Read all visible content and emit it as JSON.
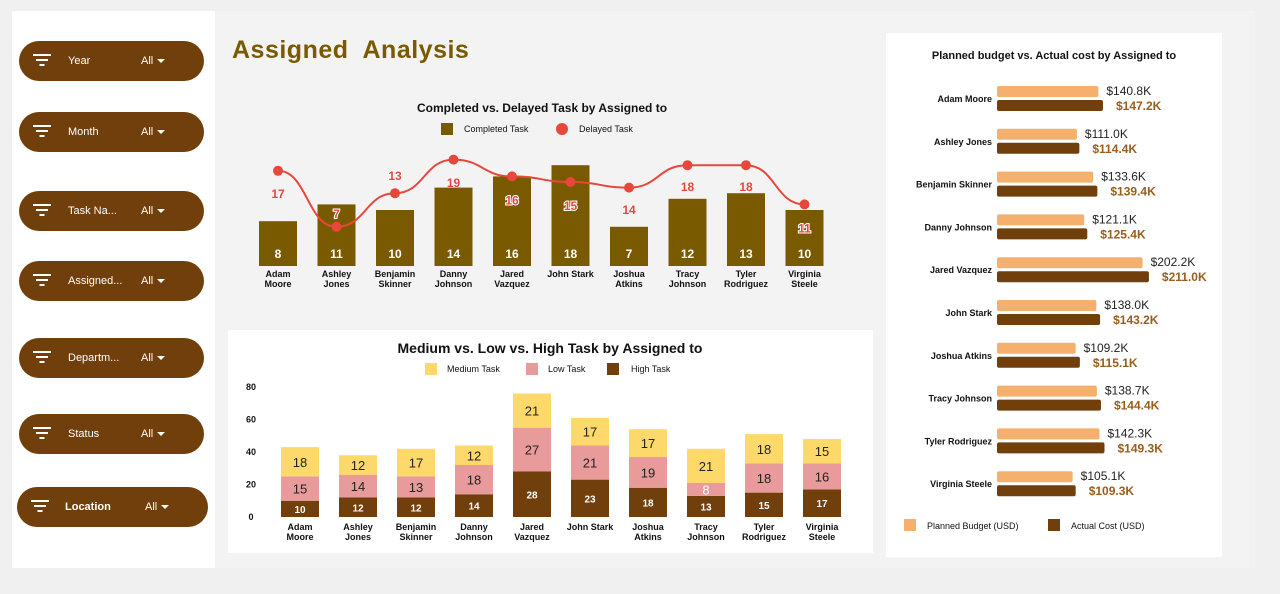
{
  "page_title": "Assigned  Analysis",
  "filters": [
    {
      "label": "Year",
      "value": "All"
    },
    {
      "label": "Month",
      "value": "All"
    },
    {
      "label": "Task Na...",
      "value": "All"
    },
    {
      "label": "Assigned...",
      "value": "All"
    },
    {
      "label": "Departm...",
      "value": "All"
    },
    {
      "label": "Status",
      "value": "All"
    },
    {
      "label": "Location",
      "value": "All"
    }
  ],
  "colors": {
    "brand": "#713f0b",
    "completed": "#7a5a00",
    "delayed": "#e8473b",
    "medium": "#fdd86a",
    "low": "#e99a9a",
    "high": "#713f0b",
    "planned": "#f5b06e",
    "actual": "#713f0b"
  },
  "chart_data": [
    {
      "type": "bar+line",
      "title": "Completed vs. Delayed Task by Assigned to",
      "categories": [
        "Adam Moore",
        "Ashley Jones",
        "Benjamin Skinner",
        "Danny Johnson",
        "Jared Vazquez",
        "John Stark",
        "Joshua Atkins",
        "Tracy Johnson",
        "Tyler Rodriguez",
        "Virginia Steele"
      ],
      "series": [
        {
          "name": "Completed Task",
          "type": "bar",
          "values": [
            8,
            11,
            10,
            14,
            16,
            18,
            7,
            12,
            13,
            10
          ]
        },
        {
          "name": "Delayed Task",
          "type": "line",
          "values": [
            17,
            7,
            13,
            19,
            16,
            15,
            14,
            18,
            18,
            11
          ]
        }
      ],
      "legend": "top"
    },
    {
      "type": "stacked-bar",
      "title": "Medium vs. Low vs. High Task by Assigned to",
      "categories": [
        "Adam Moore",
        "Ashley Jones",
        "Benjamin Skinner",
        "Danny Johnson",
        "Jared Vazquez",
        "John Stark",
        "Joshua Atkins",
        "Tracy Johnson",
        "Tyler Rodriguez",
        "Virginia Steele"
      ],
      "series": [
        {
          "name": "High Task",
          "values": [
            10,
            12,
            12,
            14,
            28,
            23,
            18,
            13,
            15,
            17
          ]
        },
        {
          "name": "Low Task",
          "values": [
            15,
            14,
            13,
            18,
            27,
            21,
            19,
            8,
            18,
            16
          ]
        },
        {
          "name": "Medium Task",
          "values": [
            18,
            12,
            17,
            12,
            21,
            17,
            17,
            21,
            18,
            15
          ]
        }
      ],
      "legend_order": [
        "Medium Task",
        "Low Task",
        "High Task"
      ],
      "yticks": [
        "0",
        "20",
        "40",
        "60",
        "80"
      ],
      "ylim": [
        0,
        80
      ]
    },
    {
      "type": "horizontal-bar",
      "title": "Planned budget vs. Actual cost by Assigned to",
      "categories": [
        "Adam Moore",
        "Ashley Jones",
        "Benjamin Skinner",
        "Danny Johnson",
        "Jared Vazquez",
        "John Stark",
        "Joshua Atkins",
        "Tracy Johnson",
        "Tyler Rodriguez",
        "Virginia Steele"
      ],
      "series": [
        {
          "name": "Planned Budget (USD)",
          "values": [
            140.8,
            111.0,
            133.6,
            121.1,
            202.2,
            138.0,
            109.2,
            138.7,
            142.3,
            105.1
          ],
          "labels": [
            "$140.8K",
            "$111.0K",
            "$133.6K",
            "$121.1K",
            "$202.2K",
            "$138.0K",
            "$109.2K",
            "$138.7K",
            "$142.3K",
            "$105.1K"
          ]
        },
        {
          "name": "Actual Cost (USD)",
          "values": [
            147.2,
            114.4,
            139.4,
            125.4,
            211.0,
            143.2,
            115.1,
            144.4,
            149.3,
            109.3
          ],
          "labels": [
            "$147.2K",
            "$114.4K",
            "$139.4K",
            "$125.4K",
            "$211.0K",
            "$143.2K",
            "$115.1K",
            "$144.4K",
            "$149.3K",
            "$109.3K"
          ]
        }
      ],
      "unit": "K USD",
      "legend": "bottom"
    }
  ]
}
